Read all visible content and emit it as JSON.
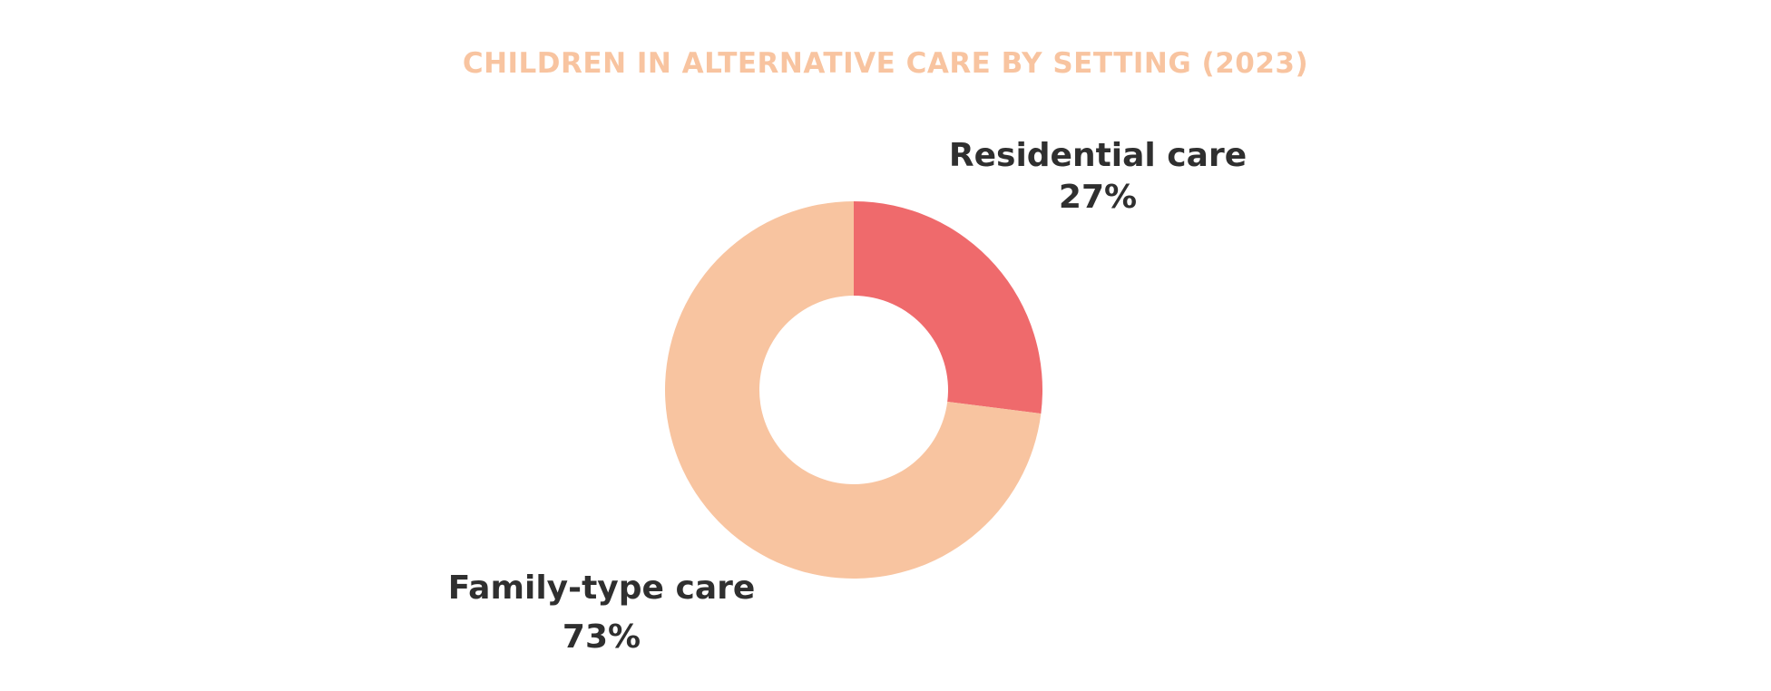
{
  "chart_data": {
    "type": "pie",
    "title": "CHILDREN IN ALTERNATIVE CARE BY SETTING (2023)",
    "donut": true,
    "slices": [
      {
        "label": "Residential care",
        "value": 27,
        "display": "27%",
        "color": "#ef6a6c"
      },
      {
        "label": "Family-type care",
        "value": 73,
        "display": "73%",
        "color": "#f8c4a0"
      }
    ],
    "title_color": "#f8c4a0",
    "legend": "none"
  }
}
